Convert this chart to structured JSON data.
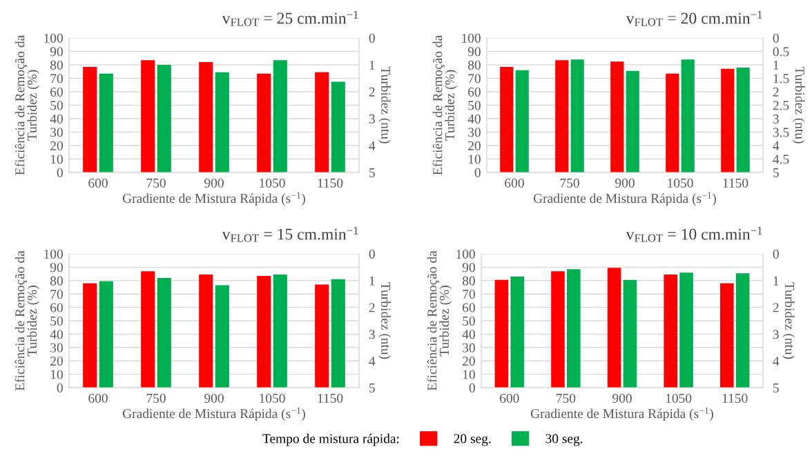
{
  "chart_data": [
    {
      "type": "bar",
      "title": "v$_{FLOT}$ = 25 cm.min$^{−1}$",
      "xlabel": "Gradiente de Mistura Rápida (s$^{−1}$)",
      "ylabel": "Eficiência de Remoção da Turbidez (%)",
      "y2label": "Turbidez (ntu)",
      "categories": [
        "600",
        "750",
        "900",
        "1050",
        "1150"
      ],
      "series": [
        {
          "name": "20 seg.",
          "color": "#ff0000",
          "values": [
            78.5,
            83.5,
            82,
            73.5,
            74.5
          ]
        },
        {
          "name": "30 seg.",
          "color": "#00b050",
          "values": [
            73.5,
            80,
            74.5,
            83.5,
            67.5
          ]
        }
      ],
      "ylim": [
        0,
        100
      ],
      "yticks": [
        0,
        10,
        20,
        30,
        40,
        50,
        60,
        70,
        80,
        90,
        100
      ],
      "y2lim": [
        5,
        0
      ],
      "y2ticks": [
        0,
        1,
        2,
        3,
        4,
        5
      ],
      "grid": "y",
      "legend": "bottom",
      "legend_title": "Tempo de mistura rápida:"
    },
    {
      "type": "bar",
      "title": "v$_{FLOT}$ = 20 cm.min$^{−1}$",
      "xlabel": "Gradiente de Mistura Rápida (s$^{−1}$)",
      "ylabel": "Eficiência de Remoção da Turbidez (%)",
      "y2label": "Turbidez (ntu)",
      "categories": [
        "600",
        "750",
        "900",
        "1050",
        "1150"
      ],
      "series": [
        {
          "color": "#ff0000",
          "values": [
            78.5,
            83.5,
            82.5,
            73.5,
            77
          ]
        },
        {
          "color": "#00b050",
          "values": [
            76,
            84,
            75.5,
            84,
            78
          ]
        }
      ],
      "ylim": [
        0,
        100
      ],
      "yticks": [
        0,
        10,
        20,
        30,
        40,
        50,
        60,
        70,
        80,
        90,
        100
      ],
      "y2lim": [
        5,
        0
      ],
      "y2ticks": [
        0,
        0.5,
        1,
        1.5,
        2,
        2.5,
        3,
        3.5,
        4,
        4.5,
        5
      ],
      "grid": "y"
    },
    {
      "type": "bar",
      "title": "v$_{FLOT}$ = 15 cm.min$^{−1}$",
      "xlabel": "Gradiente de Mistura Rápida (s$^{−1}$)",
      "ylabel": "Eficiência de Remoção da Turbidez (%)",
      "y2label": "Turbidez (ntu)",
      "categories": [
        "600",
        "750",
        "900",
        "1050",
        "1150"
      ],
      "series": [
        {
          "color": "#ff0000",
          "values": [
            78,
            87,
            84.5,
            83.5,
            77
          ]
        },
        {
          "color": "#00b050",
          "values": [
            79.5,
            82,
            76.5,
            84.5,
            81
          ]
        }
      ],
      "ylim": [
        0,
        100
      ],
      "yticks": [
        0,
        10,
        20,
        30,
        40,
        50,
        60,
        70,
        80,
        90,
        100
      ],
      "y2lim": [
        5,
        0
      ],
      "y2ticks": [
        0,
        1,
        2,
        3,
        4,
        5
      ],
      "grid": "y"
    },
    {
      "type": "bar",
      "title": "v$_{FLOT}$ = 10 cm.min$^{−1}$",
      "xlabel": "Gradiente de Mistura Rápida (s$^{−1}$)",
      "ylabel": "Eficiência de Remoção da Turbidez (%)",
      "y2label": "Turbidez (ntu)",
      "categories": [
        "600",
        "750",
        "900",
        "1050",
        "1150"
      ],
      "series": [
        {
          "color": "#ff0000",
          "values": [
            80.5,
            87,
            89.5,
            84.5,
            78
          ]
        },
        {
          "color": "#00b050",
          "values": [
            83,
            88.5,
            80.5,
            86,
            85.5
          ]
        }
      ],
      "ylim": [
        0,
        100
      ],
      "yticks": [
        0,
        10,
        20,
        30,
        40,
        50,
        60,
        70,
        80,
        90,
        100
      ],
      "y2lim": [
        5,
        0
      ],
      "y2ticks": [
        0,
        1,
        2,
        3,
        4,
        5
      ],
      "grid": "y"
    }
  ]
}
